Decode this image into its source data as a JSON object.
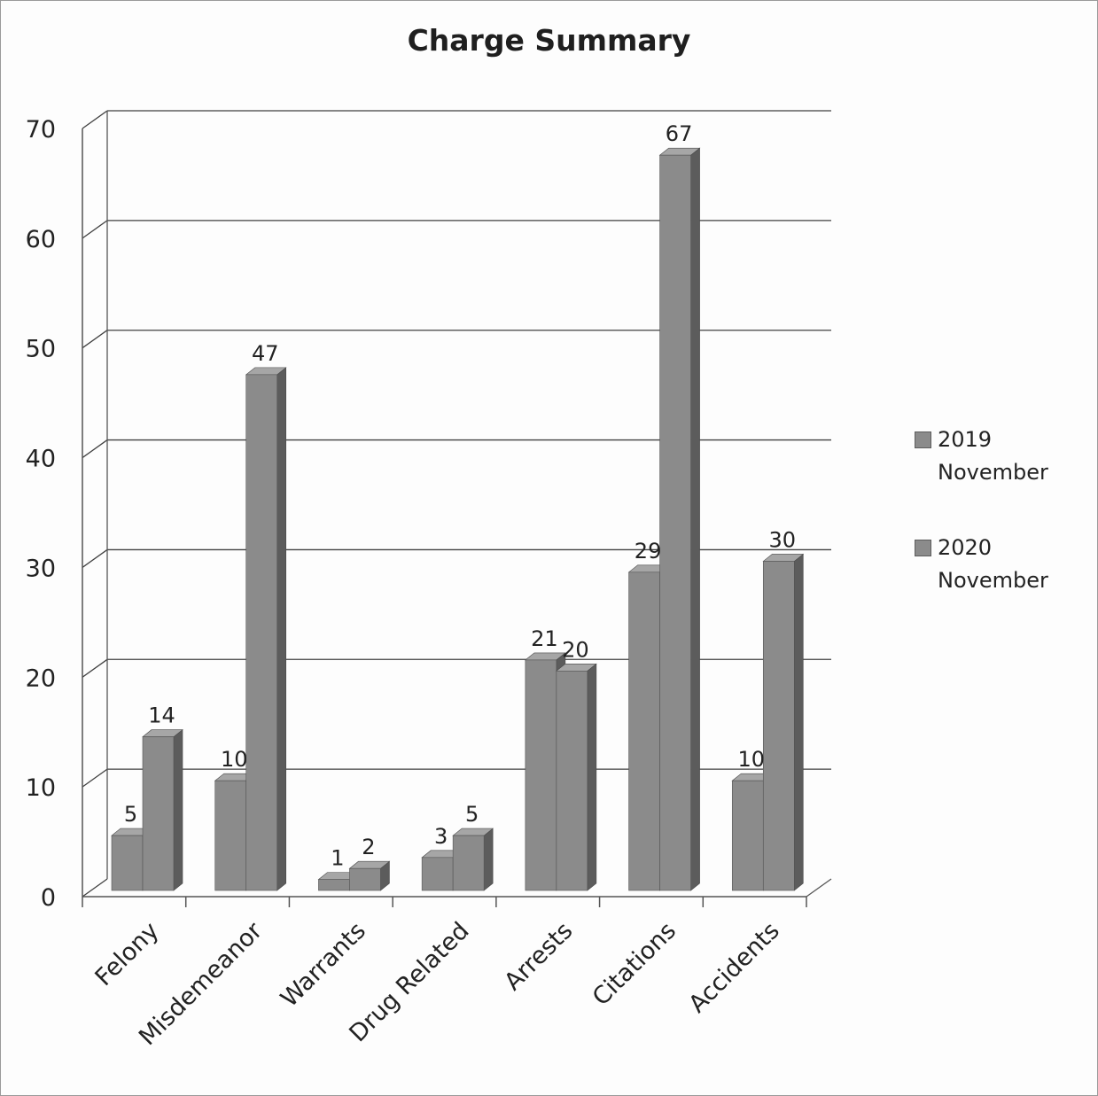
{
  "colors": {
    "bar_front": "#8b8b8b",
    "bar_side": "#5c5c5c",
    "bar_top": "#a6a6a6",
    "gridline": "#404040",
    "axis": "#555555",
    "text": "#222222"
  },
  "chart_data": {
    "type": "bar",
    "title": "Charge Summary",
    "xlabel": "",
    "ylabel": "",
    "ylim": [
      0,
      70
    ],
    "yticks": [
      0,
      10,
      20,
      30,
      40,
      50,
      60,
      70
    ],
    "grid": true,
    "legend_position": "right",
    "categories": [
      "Felony",
      "Misdemeanor",
      "Warrants",
      "Drug Related",
      "Arrests",
      "Citations",
      "Accidents"
    ],
    "series": [
      {
        "name": "2019 November",
        "legend_lines": [
          "2019",
          "November"
        ],
        "values": [
          5,
          10,
          1,
          3,
          21,
          29,
          10
        ]
      },
      {
        "name": "2020 November",
        "legend_lines": [
          "2020",
          "November"
        ],
        "values": [
          14,
          47,
          2,
          5,
          20,
          67,
          30
        ]
      }
    ]
  }
}
